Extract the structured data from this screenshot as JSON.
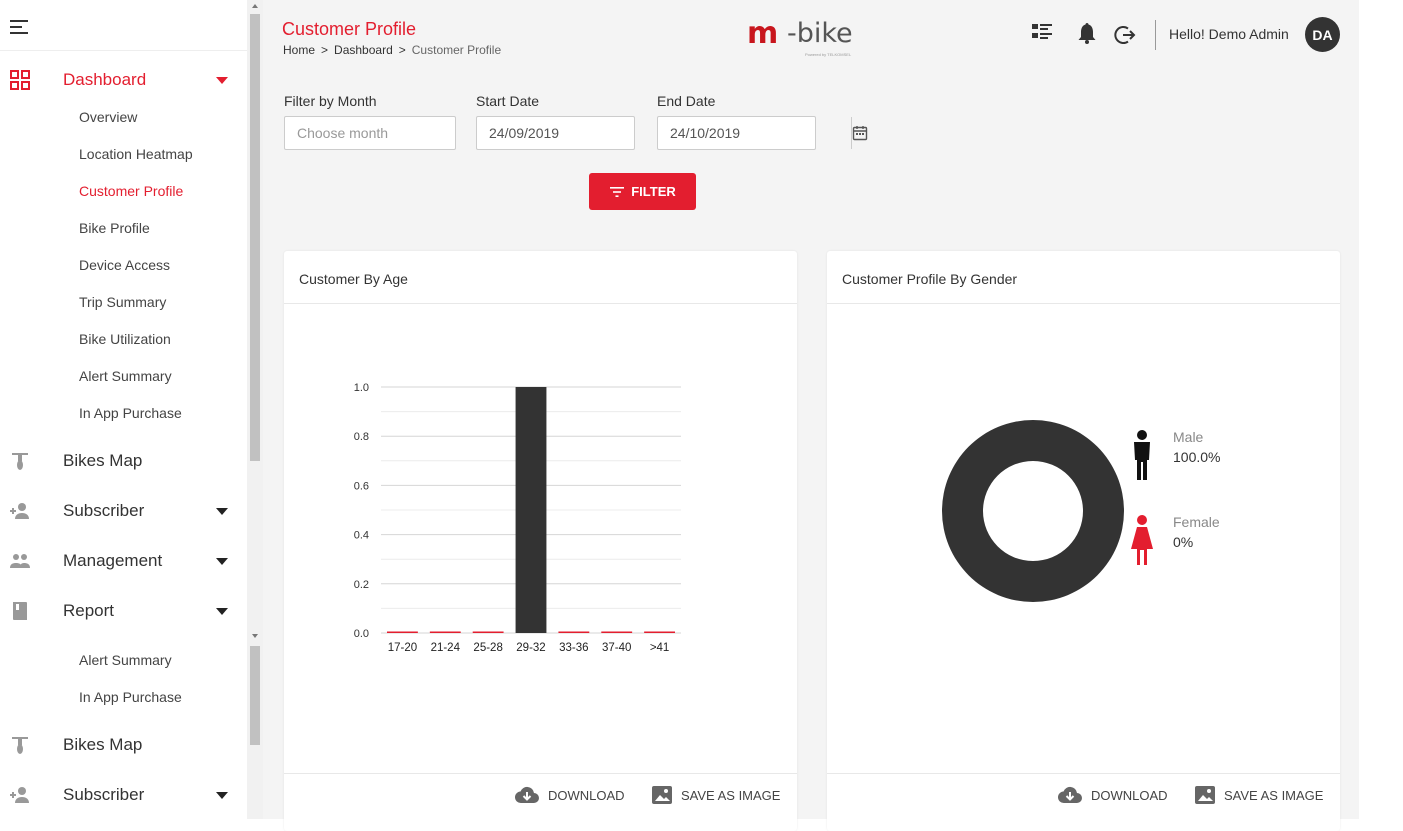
{
  "sidebar": {
    "main_items": [
      {
        "label": "Dashboard",
        "icon": "dashboard-icon",
        "active": true
      },
      {
        "label": "Bikes Map",
        "icon": "bike-icon"
      },
      {
        "label": "Subscriber",
        "icon": "add-user-icon"
      },
      {
        "label": "Management",
        "icon": "people-icon"
      },
      {
        "label": "Report",
        "icon": "book-icon"
      },
      {
        "label": "Bikes Map",
        "icon": "bike-icon"
      },
      {
        "label": "Subscriber",
        "icon": "add-user-icon"
      }
    ],
    "dashboard_sub": [
      "Overview",
      "Location Heatmap",
      "Customer Profile",
      "Bike Profile",
      "Device Access",
      "Trip Summary",
      "Bike Utilization",
      "Alert Summary",
      "In App Purchase"
    ],
    "report_sub": [
      "Alert Summary",
      "In App Purchase"
    ]
  },
  "header": {
    "title": "Customer Profile",
    "breadcrumb": [
      "Home",
      "Dashboard",
      "Customer Profile"
    ],
    "breadcrumb_sep": ">",
    "logo_m": "m",
    "logo_text": "-bike",
    "logo_tag": "Powered by TELKOMSEL",
    "greeting": "Hello! Demo Admin",
    "avatar_initials": "DA"
  },
  "filters": {
    "month_label": "Filter by Month",
    "month_placeholder": "Choose month",
    "start_label": "Start Date",
    "start_value": "24/09/2019",
    "end_label": "End Date",
    "end_value": "24/10/2019",
    "button_label": "FILTER"
  },
  "cards": {
    "age_title": "Customer By Age",
    "gender_title": "Customer Profile By Gender",
    "download_label": "DOWNLOAD",
    "save_label": "SAVE AS IMAGE"
  },
  "colors": {
    "accent": "#e31e2f",
    "dark": "#333333",
    "bar": "#333333"
  },
  "chart_data": [
    {
      "type": "bar",
      "title": "Customer By Age",
      "categories": [
        "17-20",
        "21-24",
        "25-28",
        "29-32",
        "33-36",
        "37-40",
        ">41"
      ],
      "values": [
        0,
        0,
        0,
        1,
        0,
        0,
        0
      ],
      "ylim": [
        0,
        1.0
      ],
      "yticks": [
        "0.0",
        "0.2",
        "0.4",
        "0.6",
        "0.8",
        "1.0"
      ],
      "grid": true
    },
    {
      "type": "pie",
      "title": "Customer Profile By Gender",
      "series": [
        {
          "name": "Male",
          "value": 100.0,
          "label": "100.0%",
          "color": "#333333"
        },
        {
          "name": "Female",
          "value": 0,
          "label": "0%",
          "color": "#e31e2f"
        }
      ],
      "legend": "right"
    }
  ]
}
